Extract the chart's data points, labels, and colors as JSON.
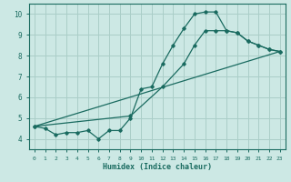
{
  "xlabel": "Humidex (Indice chaleur)",
  "bg_color": "#cce8e4",
  "grid_color": "#aacec8",
  "line_color": "#1a6b60",
  "xlim": [
    -0.5,
    23.5
  ],
  "ylim": [
    3.5,
    10.5
  ],
  "xticks": [
    0,
    1,
    2,
    3,
    4,
    5,
    6,
    7,
    8,
    9,
    10,
    11,
    12,
    13,
    14,
    15,
    16,
    17,
    18,
    19,
    20,
    21,
    22,
    23
  ],
  "yticks": [
    4,
    5,
    6,
    7,
    8,
    9,
    10
  ],
  "line1_x": [
    0,
    1,
    2,
    3,
    4,
    5,
    6,
    7,
    8,
    9,
    10,
    11,
    12,
    13,
    14,
    15,
    16,
    17,
    18,
    19,
    20,
    21,
    22,
    23
  ],
  "line1_y": [
    4.6,
    4.5,
    4.2,
    4.3,
    4.3,
    4.4,
    4.0,
    4.4,
    4.4,
    5.0,
    6.4,
    6.5,
    7.6,
    8.5,
    9.3,
    10.0,
    10.1,
    10.1,
    9.2,
    9.1,
    8.7,
    8.5,
    8.3,
    8.2
  ],
  "line2_x": [
    0,
    23
  ],
  "line2_y": [
    4.6,
    8.2
  ],
  "line3_x": [
    0,
    9,
    12,
    14,
    15,
    16,
    17,
    18,
    19,
    20,
    21,
    22,
    23
  ],
  "line3_y": [
    4.6,
    5.1,
    6.5,
    7.6,
    8.5,
    9.2,
    9.2,
    9.2,
    9.1,
    8.7,
    8.5,
    8.3,
    8.2
  ]
}
